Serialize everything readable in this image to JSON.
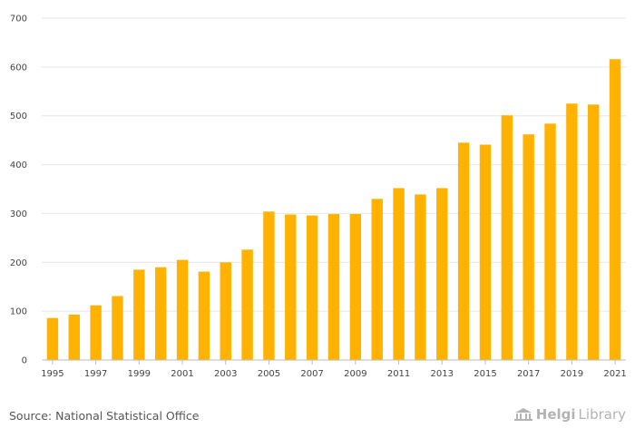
{
  "chart_data": {
    "type": "bar",
    "title": "",
    "xlabel": "",
    "ylabel": "",
    "ylim": [
      0,
      700
    ],
    "yticks": [
      0,
      100,
      200,
      300,
      400,
      500,
      600,
      700
    ],
    "categories": [
      "1995",
      "1996",
      "1997",
      "1998",
      "1999",
      "2000",
      "2001",
      "2002",
      "2003",
      "2004",
      "2005",
      "2006",
      "2007",
      "2008",
      "2009",
      "2010",
      "2011",
      "2012",
      "2013",
      "2014",
      "2015",
      "2016",
      "2017",
      "2018",
      "2019",
      "2020",
      "2021"
    ],
    "tick_labels": [
      "1995",
      "1997",
      "1999",
      "2001",
      "2003",
      "2005",
      "2007",
      "2009",
      "2011",
      "2013",
      "2015",
      "2017",
      "2019",
      "2021"
    ],
    "values": [
      86,
      93,
      112,
      131,
      185,
      190,
      205,
      181,
      200,
      226,
      304,
      298,
      296,
      299,
      299,
      330,
      352,
      339,
      352,
      445,
      441,
      501,
      462,
      484,
      525,
      523,
      616
    ],
    "bar_color": "#FFB300",
    "grid": true
  },
  "footer": {
    "source": "Source: National Statistical Office",
    "logo_helgi": "Helgi",
    "logo_library": "Library"
  }
}
